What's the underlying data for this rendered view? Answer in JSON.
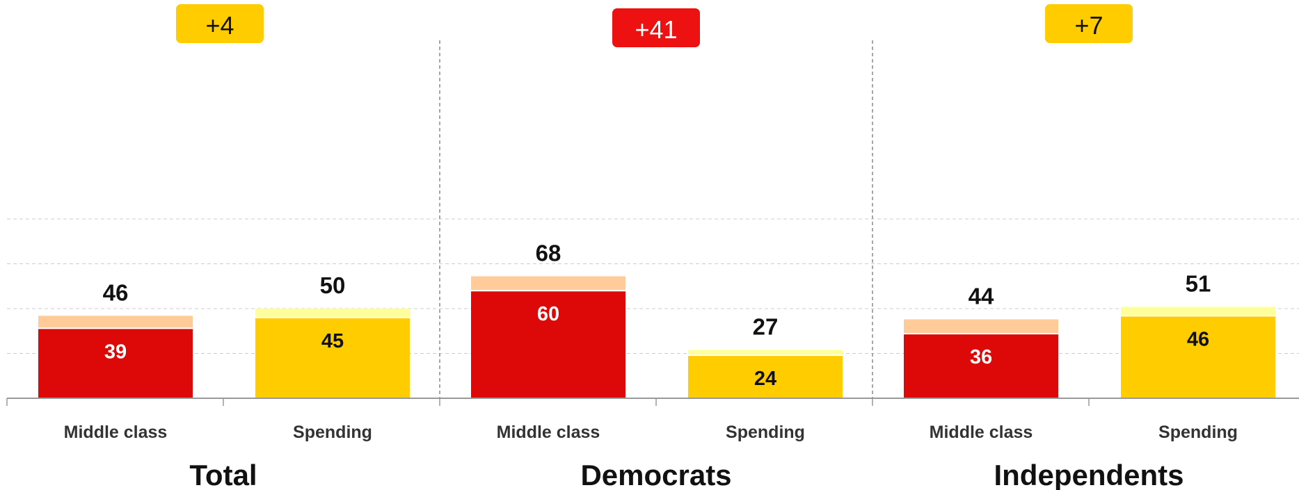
{
  "chart_data": {
    "type": "bar",
    "stacked": true,
    "grid": true,
    "ylim": [
      0,
      100
    ],
    "categories": [
      "Middle class",
      "Spending"
    ],
    "groups": [
      {
        "name": "Total",
        "net_label": "+4",
        "net_color": "#FFCC00",
        "bars": [
          {
            "category": "Middle class",
            "base": 39,
            "total": 46
          },
          {
            "category": "Spending",
            "base": 45,
            "total": 50
          }
        ]
      },
      {
        "name": "Democrats",
        "net_label": "+41",
        "net_color": "#EE1111",
        "bars": [
          {
            "category": "Middle class",
            "base": 60,
            "total": 68
          },
          {
            "category": "Spending",
            "base": 24,
            "total": 27
          }
        ]
      },
      {
        "name": "Independents",
        "net_label": "+7",
        "net_color": "#FFCC00",
        "bars": [
          {
            "category": "Middle class",
            "base": 36,
            "total": 44
          },
          {
            "category": "Spending",
            "base": 46,
            "total": 51
          }
        ]
      }
    ],
    "colors": {
      "middle_base": "#DD0808",
      "middle_top": "#FFCC99",
      "spending_base": "#FFCC00",
      "spending_top": "#FFFF99",
      "grid": "#CCCCCC",
      "axis": "#999999",
      "separator": "#888888"
    }
  }
}
